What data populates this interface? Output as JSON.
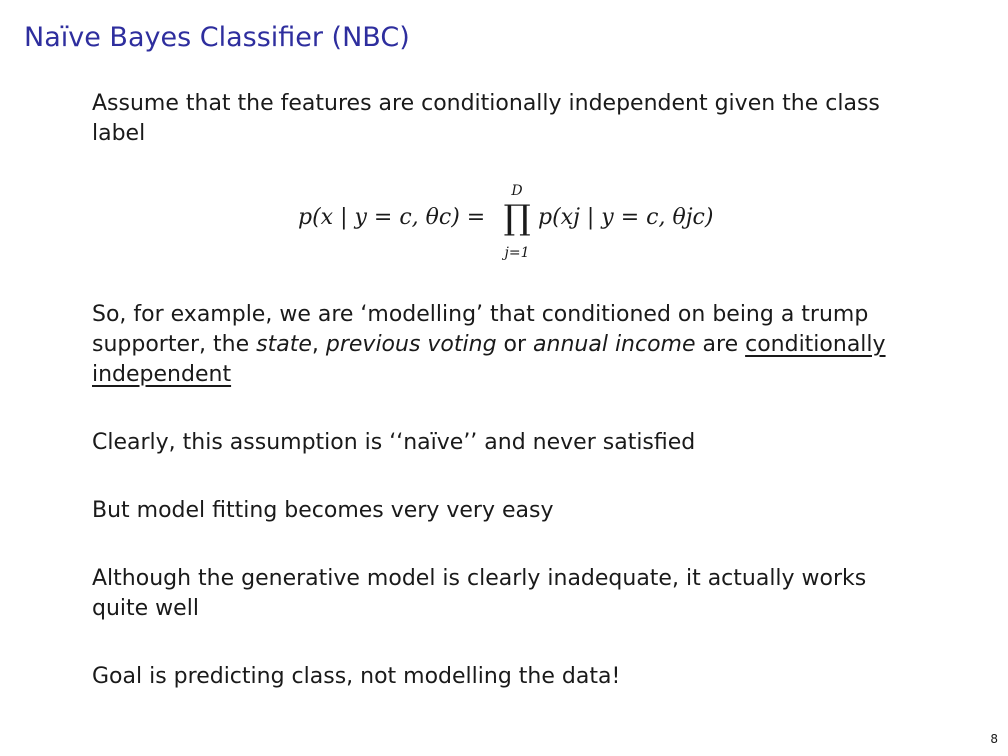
{
  "slide": {
    "title": "Naïve Bayes Classifier (NBC)",
    "page_number": "8"
  },
  "intro": {
    "text": "Assume that the features are conditionally independent given the class label"
  },
  "formula": {
    "lhs": "p(x | y = c, θc) =",
    "product_upper": "D",
    "product_symbol": "∏",
    "product_lower": "j=1",
    "rhs": "p(xj | y = c, θjc)"
  },
  "example": {
    "part1": "So, for example, we are ‘modelling’ that conditioned on being a trump supporter, the ",
    "state": "state",
    "comma": ", ",
    "previous_voting": "previous voting",
    "or_text": " or ",
    "annual_income": "annual income",
    "are_text": " are ",
    "conditionally_independent": "conditionally independent"
  },
  "points": [
    "Clearly, this assumption is ‘‘naïve’’ and never satisfied",
    "But model fitting becomes very very easy",
    "Although the generative model is clearly inadequate, it actually works quite well",
    "Goal is predicting class, not modelling the data!"
  ]
}
